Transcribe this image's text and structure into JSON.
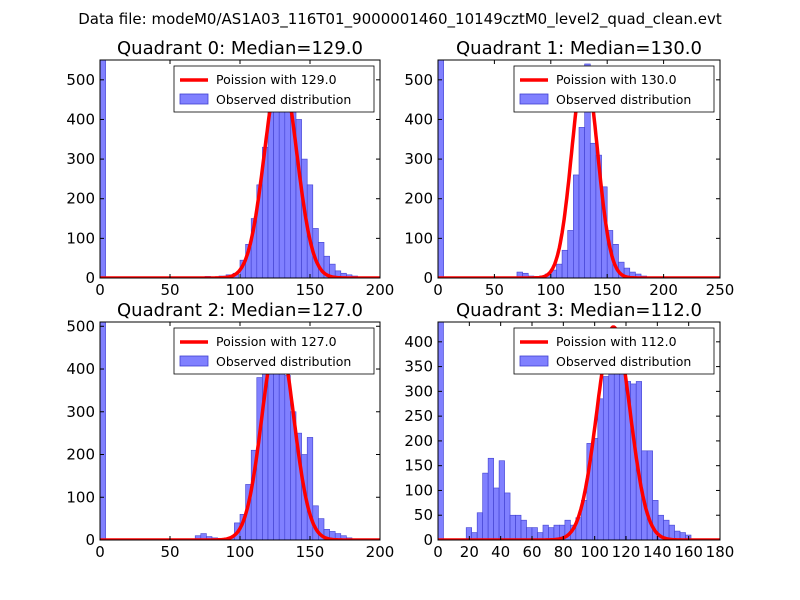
{
  "suptitle": "Data file: modeM0/AS1A03_116T01_9000001460_10149cztM0_level2_quad_clean.evt",
  "colors": {
    "bar_fill": "#8080ff",
    "bar_edge": "#3f3fd0",
    "curve": "#ff0000",
    "axis": "#000000"
  },
  "chart_data": [
    {
      "type": "bar",
      "title": "Quadrant 0: Median=129.0",
      "median": 129.0,
      "xlim": [
        0,
        200
      ],
      "ylim": [
        0,
        550
      ],
      "xticks": [
        "0",
        "50",
        "100",
        "150",
        "200"
      ],
      "yticks": [
        "0",
        "100",
        "200",
        "300",
        "400",
        "500"
      ],
      "legend": {
        "location": "upper-right",
        "line_label": "Poission with 129.0",
        "bar_label": "Observed distribution"
      },
      "bin_width": 4,
      "bins": [
        [
          0,
          550
        ],
        [
          70,
          2
        ],
        [
          75,
          4
        ],
        [
          80,
          3
        ],
        [
          85,
          5
        ],
        [
          90,
          8
        ],
        [
          95,
          12
        ],
        [
          100,
          45
        ],
        [
          104,
          85
        ],
        [
          108,
          150
        ],
        [
          112,
          235
        ],
        [
          116,
          330
        ],
        [
          120,
          420
        ],
        [
          124,
          520
        ],
        [
          128,
          470
        ],
        [
          132,
          505
        ],
        [
          136,
          460
        ],
        [
          140,
          400
        ],
        [
          144,
          300
        ],
        [
          148,
          235
        ],
        [
          152,
          125
        ],
        [
          156,
          90
        ],
        [
          160,
          55
        ],
        [
          164,
          35
        ],
        [
          168,
          18
        ],
        [
          172,
          12
        ],
        [
          176,
          8
        ],
        [
          180,
          5
        ],
        [
          184,
          3
        ]
      ],
      "curve_peak": 530
    },
    {
      "type": "bar",
      "title": "Quadrant 1: Median=130.0",
      "median": 130.0,
      "xlim": [
        0,
        250
      ],
      "ylim": [
        0,
        550
      ],
      "xticks": [
        "0",
        "50",
        "100",
        "150",
        "200",
        "250"
      ],
      "yticks": [
        "0",
        "100",
        "200",
        "300",
        "400",
        "500"
      ],
      "legend": {
        "location": "upper-right",
        "line_label": "Poission with 130.0",
        "bar_label": "Observed distribution"
      },
      "bin_width": 5,
      "bins": [
        [
          0,
          550
        ],
        [
          70,
          15
        ],
        [
          75,
          12
        ],
        [
          80,
          5
        ],
        [
          85,
          4
        ],
        [
          90,
          5
        ],
        [
          95,
          10
        ],
        [
          100,
          20
        ],
        [
          105,
          35
        ],
        [
          110,
          70
        ],
        [
          115,
          120
        ],
        [
          120,
          260
        ],
        [
          125,
          380
        ],
        [
          130,
          540
        ],
        [
          135,
          340
        ],
        [
          140,
          310
        ],
        [
          145,
          230
        ],
        [
          150,
          120
        ],
        [
          155,
          85
        ],
        [
          160,
          40
        ],
        [
          165,
          25
        ],
        [
          170,
          15
        ],
        [
          175,
          10
        ],
        [
          180,
          5
        ]
      ],
      "curve_peak": 530
    },
    {
      "type": "bar",
      "title": "Quadrant 2: Median=127.0",
      "median": 127.0,
      "xlim": [
        0,
        200
      ],
      "ylim": [
        0,
        510
      ],
      "xticks": [
        "0",
        "50",
        "100",
        "150",
        "200"
      ],
      "yticks": [
        "0",
        "100",
        "200",
        "300",
        "400",
        "500"
      ],
      "legend": {
        "location": "upper-right",
        "line_label": "Poission with 127.0",
        "bar_label": "Observed distribution"
      },
      "bin_width": 4,
      "bins": [
        [
          0,
          510
        ],
        [
          68,
          10
        ],
        [
          72,
          15
        ],
        [
          76,
          8
        ],
        [
          80,
          5
        ],
        [
          84,
          4
        ],
        [
          88,
          3
        ],
        [
          92,
          5
        ],
        [
          96,
          40
        ],
        [
          100,
          60
        ],
        [
          104,
          130
        ],
        [
          108,
          210
        ],
        [
          112,
          380
        ],
        [
          116,
          395
        ],
        [
          120,
          480
        ],
        [
          124,
          420
        ],
        [
          128,
          400
        ],
        [
          132,
          385
        ],
        [
          136,
          300
        ],
        [
          140,
          250
        ],
        [
          144,
          200
        ],
        [
          148,
          240
        ],
        [
          152,
          80
        ],
        [
          156,
          50
        ],
        [
          160,
          25
        ],
        [
          164,
          20
        ],
        [
          168,
          15
        ],
        [
          172,
          10
        ],
        [
          176,
          5
        ]
      ],
      "curve_peak": 480
    },
    {
      "type": "bar",
      "title": "Quadrant 3: Median=112.0",
      "median": 112.0,
      "xlim": [
        0,
        180
      ],
      "ylim": [
        0,
        440
      ],
      "xticks": [
        "0",
        "20",
        "40",
        "60",
        "80",
        "100",
        "120",
        "140",
        "160",
        "180"
      ],
      "yticks": [
        "0",
        "50",
        "100",
        "150",
        "200",
        "250",
        "300",
        "350",
        "400"
      ],
      "legend": {
        "location": "upper-right",
        "line_label": "Poission with 112.0",
        "bar_label": "Observed distribution"
      },
      "bin_width": 3.5,
      "bins": [
        [
          0,
          440
        ],
        [
          18,
          25
        ],
        [
          21.5,
          15
        ],
        [
          25,
          55
        ],
        [
          28.5,
          135
        ],
        [
          32,
          165
        ],
        [
          35.5,
          105
        ],
        [
          39,
          160
        ],
        [
          42.5,
          95
        ],
        [
          46,
          50
        ],
        [
          49.5,
          50
        ],
        [
          53,
          40
        ],
        [
          56.5,
          25
        ],
        [
          60,
          25
        ],
        [
          63.5,
          15
        ],
        [
          67,
          30
        ],
        [
          70.5,
          25
        ],
        [
          74,
          30
        ],
        [
          77.5,
          30
        ],
        [
          81,
          40
        ],
        [
          84.5,
          30
        ],
        [
          88,
          45
        ],
        [
          91.5,
          80
        ],
        [
          95,
          195
        ],
        [
          98.5,
          205
        ],
        [
          102,
          285
        ],
        [
          105.5,
          330
        ],
        [
          109,
          400
        ],
        [
          112.5,
          390
        ],
        [
          116,
          400
        ],
        [
          119.5,
          320
        ],
        [
          123,
          315
        ],
        [
          126.5,
          320
        ],
        [
          130,
          180
        ],
        [
          133.5,
          180
        ],
        [
          137,
          80
        ],
        [
          140.5,
          50
        ],
        [
          144,
          40
        ],
        [
          147.5,
          30
        ],
        [
          151,
          18
        ],
        [
          154.5,
          15
        ],
        [
          158,
          10
        ]
      ],
      "curve_peak": 430
    }
  ]
}
